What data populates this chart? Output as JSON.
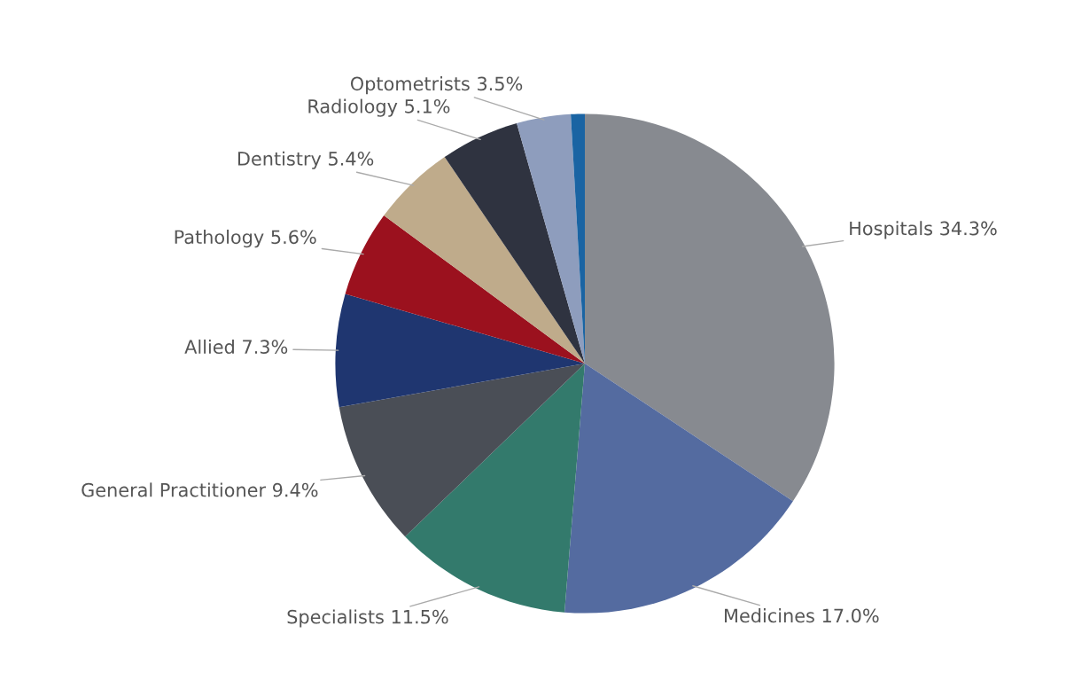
{
  "chart_data": {
    "type": "pie",
    "categories": [
      "Hospitals",
      "Medicines",
      "Specialists",
      "General Practitioner",
      "Allied",
      "Pathology",
      "Dentistry",
      "Radiology",
      "Optometrists",
      null
    ],
    "values": [
      34.3,
      17.0,
      11.5,
      9.4,
      7.3,
      5.6,
      5.4,
      5.1,
      3.5,
      0.9
    ],
    "value_labels": [
      "34.3%",
      "17.0%",
      "11.5%",
      "9.4%",
      "7.3%",
      "5.6%",
      "5.4%",
      "5.1%",
      "3.5%",
      null
    ],
    "colors": [
      "#878a90",
      "#546ba0",
      "#337a6c",
      "#4a4e56",
      "#1f3670",
      "#9b111e",
      "#bfab8b",
      "#2f3340",
      "#8e9dbd",
      "#1a64a3"
    ],
    "legend": false
  }
}
